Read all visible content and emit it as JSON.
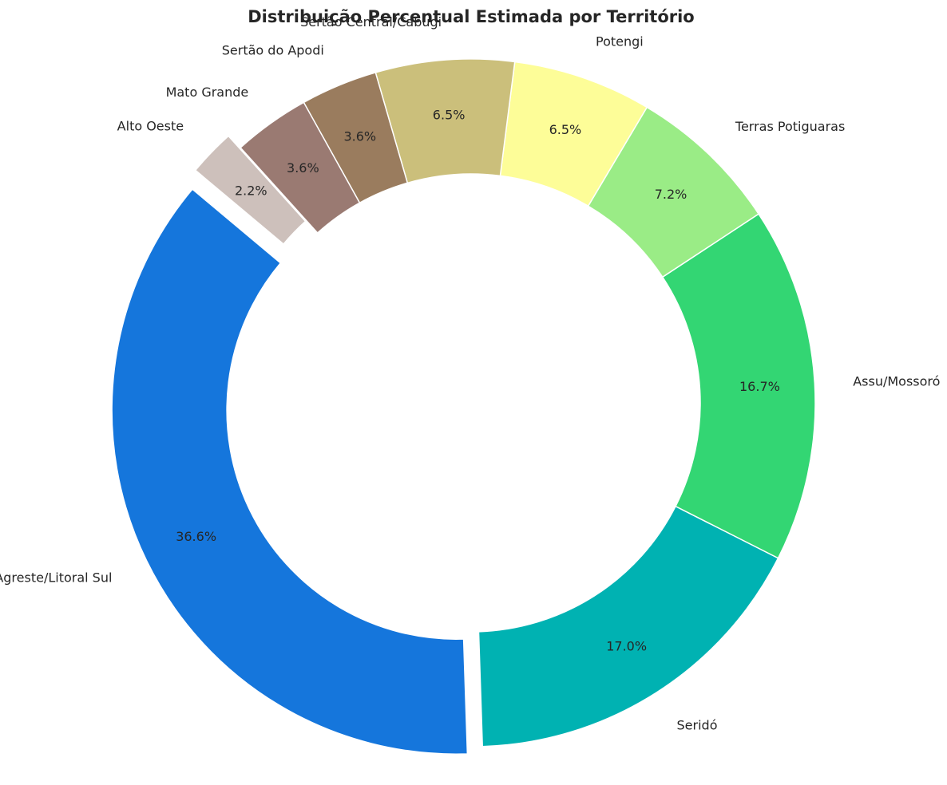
{
  "chart_data": {
    "type": "pie",
    "variant": "donut",
    "title": "Distribuição Percentual Estimada por Território",
    "start_angle_deg": 140,
    "direction": "counterclockwise",
    "slices": [
      {
        "label": "Agreste/Litoral Sul",
        "value": 36.6,
        "pct_label": "36.6%",
        "color": "#1576dc",
        "exploded": true
      },
      {
        "label": "Seridó",
        "value": 17.0,
        "pct_label": "17.0%",
        "color": "#00b2b2",
        "exploded": false
      },
      {
        "label": "Assu/Mossoró",
        "value": 16.7,
        "pct_label": "16.7%",
        "color": "#33d673",
        "exploded": false
      },
      {
        "label": "Terras Potiguaras",
        "value": 7.2,
        "pct_label": "7.2%",
        "color": "#9aec86",
        "exploded": false
      },
      {
        "label": "Potengi",
        "value": 6.5,
        "pct_label": "6.5%",
        "color": "#fdfd98",
        "exploded": false
      },
      {
        "label": "Sertão Central/Cabugi",
        "value": 6.5,
        "pct_label": "6.5%",
        "color": "#cbbf7b",
        "exploded": false
      },
      {
        "label": "Sertão do Apodi",
        "value": 3.6,
        "pct_label": "3.6%",
        "color": "#9a7c5e",
        "exploded": false
      },
      {
        "label": "Mato Grande",
        "value": 3.6,
        "pct_label": "3.6%",
        "color": "#9a7a72",
        "exploded": false
      },
      {
        "label": "Alto Oeste",
        "value": 2.2,
        "pct_label": "2.2%",
        "color": "#cdc0bb",
        "exploded": true
      }
    ]
  }
}
